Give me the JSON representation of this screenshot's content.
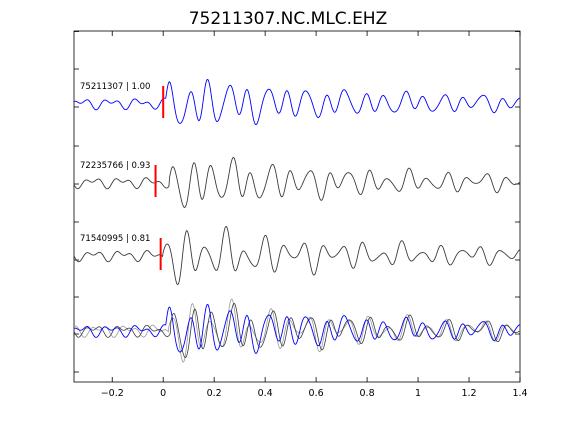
{
  "chart_data": {
    "type": "line",
    "title": "75211307.NC.MLC.EHZ",
    "xlabel": "",
    "ylabel": "",
    "xlim": [
      -0.35,
      1.4
    ],
    "x_ticks": [
      -0.2,
      0,
      0.2,
      0.4,
      0.6,
      0.8,
      1,
      1.2,
      1.4
    ],
    "x_tick_labels": [
      "−0.2",
      "0",
      "0.2",
      "0.4",
      "0.6",
      "0.8",
      "1",
      "1.2",
      "1.4"
    ],
    "grid": false,
    "legend": "none",
    "colors": {
      "reference": "#0000ff",
      "match": "#3c3c3c",
      "pick": "#ff0000"
    },
    "traces": [
      {
        "label": "75211307 | 1.00",
        "color": "#0000ff",
        "pick_time": 0.0,
        "offset": 0.0
      },
      {
        "label": "72235766 | 0.93",
        "color": "#3c3c3c",
        "pick_time": -0.03,
        "offset": 0.015
      },
      {
        "label": "71540995 | 0.81",
        "color": "#3c3c3c",
        "pick_time": -0.01,
        "offset": -0.01
      }
    ],
    "stack": {
      "label": ""
    }
  }
}
